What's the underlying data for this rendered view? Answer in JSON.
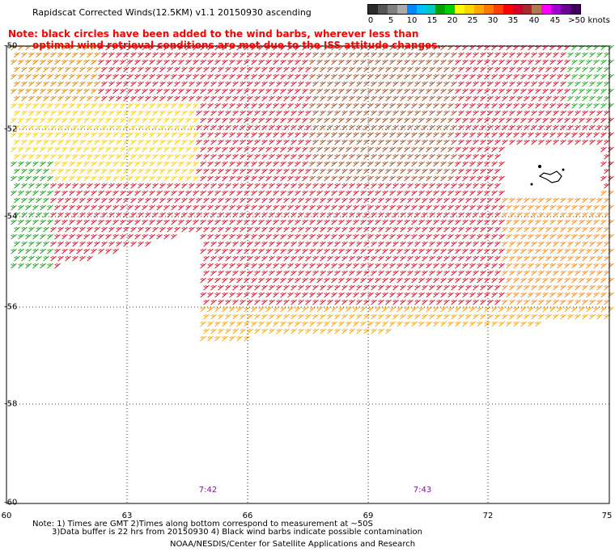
{
  "header": {
    "title": "Rapidscat Corrected Winds(12.5KM) v1.1 20150930 ascending"
  },
  "note": {
    "line1": "Note: black circles have been added to the wind barbs, wherever less than",
    "line2": "optimal wind retrieval conditions are met due to the ISS attitude changes."
  },
  "legend": {
    "labels": [
      "0",
      "5",
      "10",
      "15",
      "20",
      "25",
      "30",
      "35",
      "40",
      "45",
      ">50 knots"
    ],
    "colors": [
      "#2a2a2a",
      "#555555",
      "#808080",
      "#aaaaaa",
      "#0088ff",
      "#00bfff",
      "#00c8c8",
      "#00a000",
      "#00d000",
      "#ffff00",
      "#ffd700",
      "#ffaa00",
      "#ff7a00",
      "#ff4000",
      "#ff0000",
      "#d0002a",
      "#a52a2a",
      "#b07a50",
      "#ff00ff",
      "#a000d0",
      "#6a0090",
      "#400060"
    ]
  },
  "axes": {
    "x_ticks": [
      "60",
      "63",
      "66",
      "69",
      "72",
      "75"
    ],
    "y_ticks": [
      "-50",
      "-52",
      "-54",
      "-56",
      "-58",
      "-60"
    ]
  },
  "times": [
    "7:42",
    "7:43"
  ],
  "footer": {
    "note1": "Note: 1) Times are GMT 2)Times along bottom correspond to measurement at ~50S",
    "note2": "3)Data buffer is 22 hrs from 20150930 4) Black wind barbs indicate possible contamination",
    "credit": "NOAA/NESDIS/Center for Satellite Applications and Research"
  }
}
